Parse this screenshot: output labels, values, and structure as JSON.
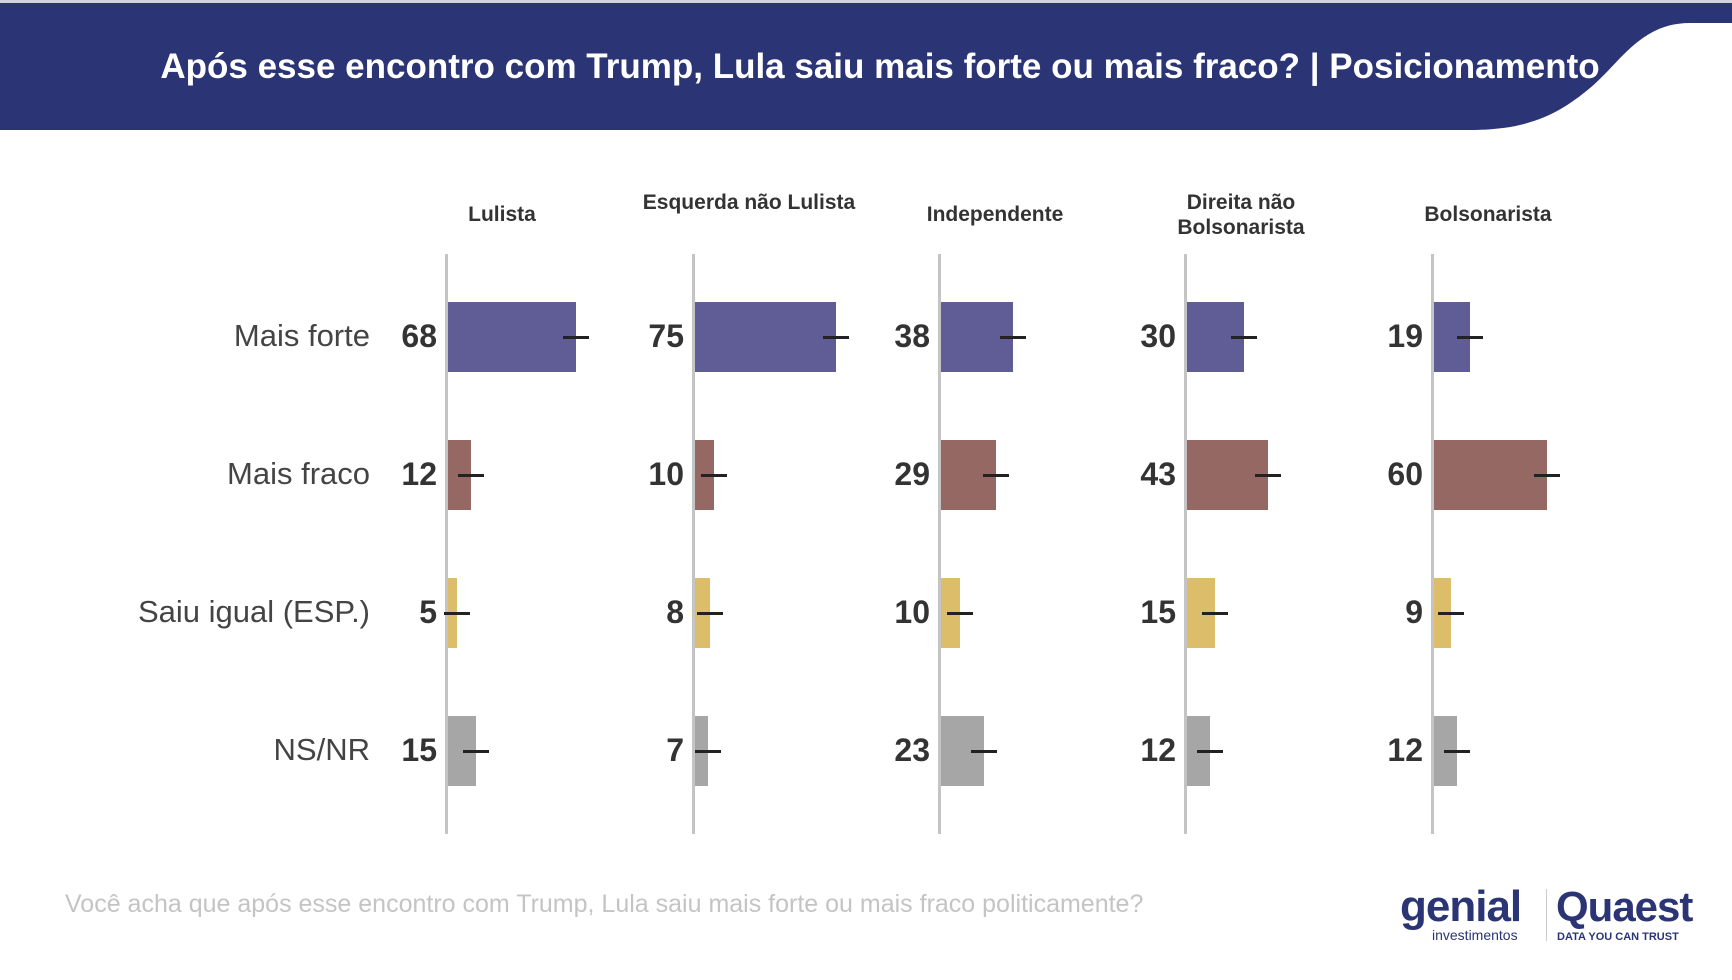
{
  "title": "Após esse encontro com Trump, Lula saiu mais forte ou mais fraco? | Posicionamento",
  "question": "Você acha que após esse encontro com Trump, Lula saiu mais forte ou mais fraco politicamente?",
  "logos": {
    "genial": "genial",
    "genial_sub": "investimentos",
    "quaest": "Quaest",
    "quaest_tagline": "DATA YOU CAN TRUST"
  },
  "colors": {
    "header": "#2b3575",
    "mais_forte": "#5f5c96",
    "mais_fraco": "#956863",
    "saiu_igual": "#dcbd6a",
    "ns_nr": "#a6a6a6"
  },
  "chart_data": {
    "type": "bar",
    "orientation": "horizontal",
    "title": "Após esse encontro com Trump, Lula saiu mais forte ou mais fraco? | Posicionamento",
    "categories": [
      "Mais forte",
      "Mais fraco",
      "Saiu igual (ESP.)",
      "NS/NR"
    ],
    "groups": [
      {
        "name": "Lulista",
        "values": [
          68,
          12,
          5,
          15
        ]
      },
      {
        "name": "Esquerda não Lulista",
        "values": [
          75,
          10,
          8,
          7
        ]
      },
      {
        "name": "Independente",
        "values": [
          38,
          29,
          10,
          23
        ]
      },
      {
        "name": "Direita não Bolsonarista",
        "values": [
          30,
          43,
          15,
          12
        ]
      },
      {
        "name": "Bolsonarista",
        "values": [
          19,
          60,
          9,
          12
        ]
      }
    ],
    "error_bars": true,
    "unit": "%"
  }
}
